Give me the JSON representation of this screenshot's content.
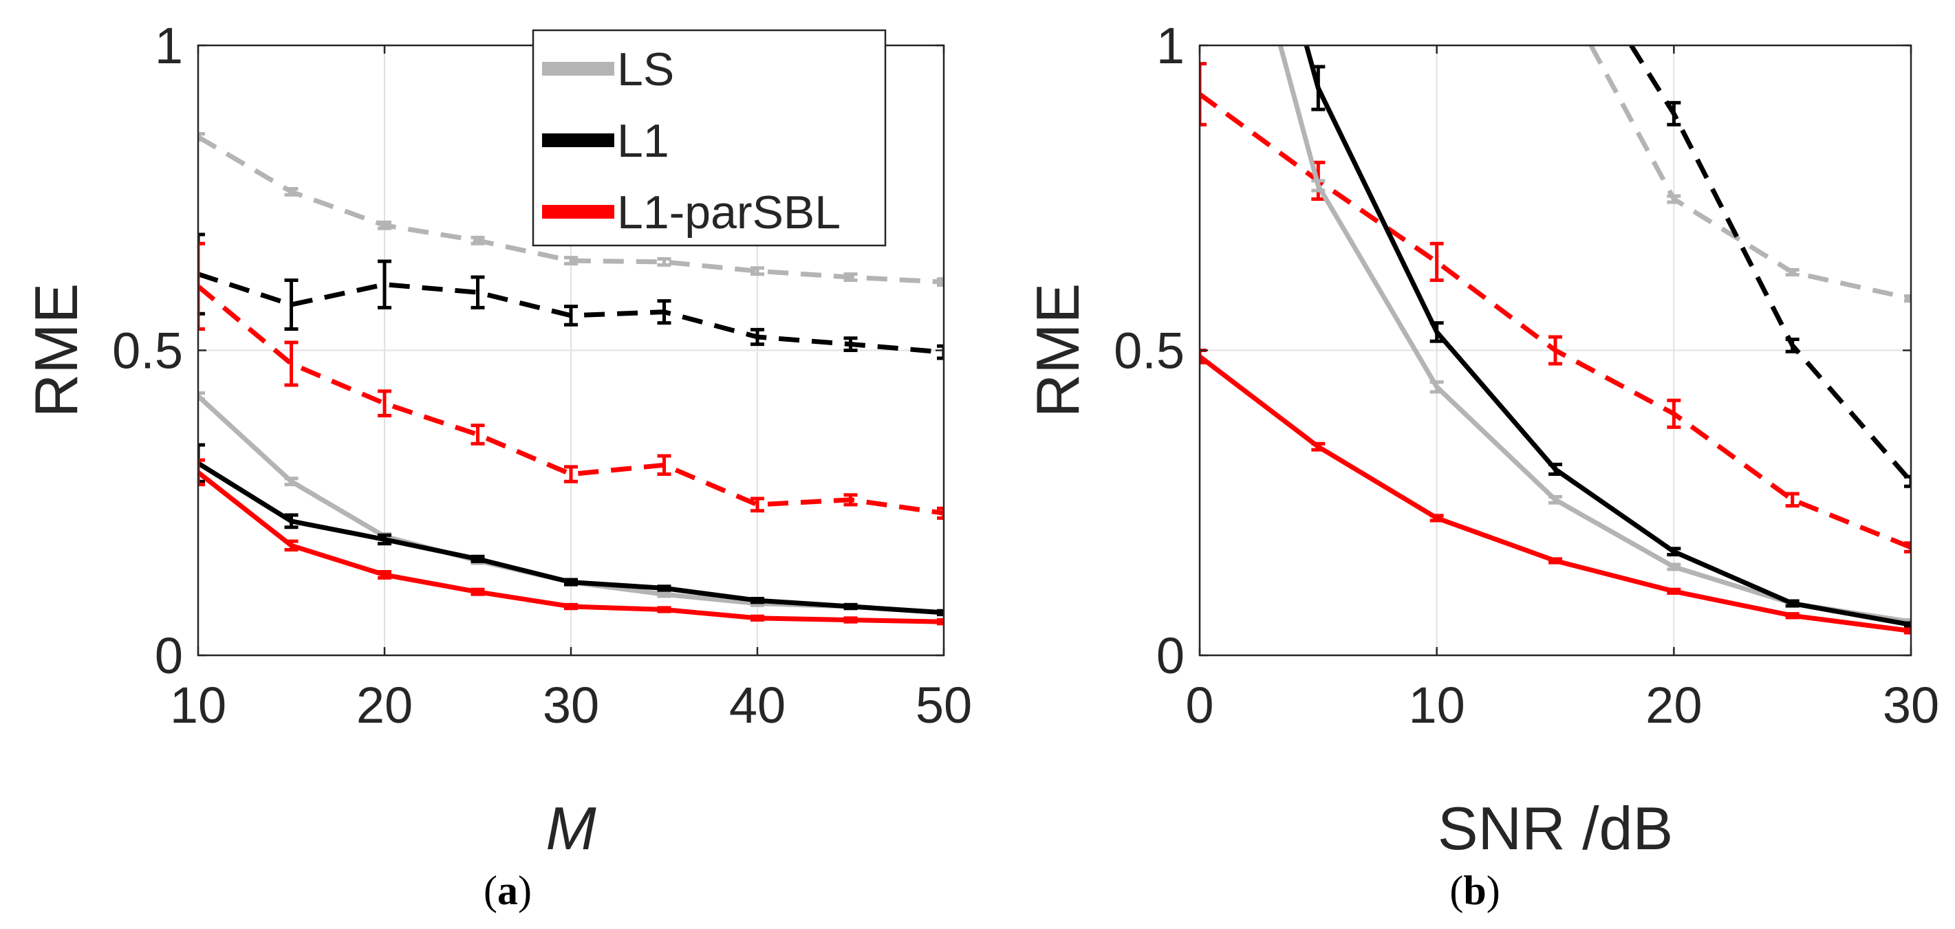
{
  "legend": {
    "items": [
      "LS",
      "L1",
      "L1-parSBL"
    ]
  },
  "colors": {
    "LS": "#b4b4b4",
    "L1": "#000000",
    "L1-parSBL": "#ff0000"
  },
  "captions": [
    {
      "open": "(",
      "letter": "a",
      "close": ")"
    },
    {
      "open": "(",
      "letter": "b",
      "close": ")"
    }
  ],
  "chart_data": [
    {
      "type": "line",
      "xlabel": "M",
      "ylabel": "RME",
      "xlim": [
        10,
        50
      ],
      "ylim": [
        0,
        1
      ],
      "xticks": [
        "10",
        "20",
        "30",
        "40",
        "50"
      ],
      "yticks": [
        "0",
        "0.5",
        "1"
      ],
      "grid": true,
      "legend_position": "top-center",
      "x": [
        10,
        15,
        20,
        25,
        30,
        35,
        40,
        45,
        50
      ],
      "series": [
        {
          "name": "LS",
          "style": "dashed",
          "values": [
            0.85,
            0.76,
            0.705,
            0.68,
            0.647,
            0.645,
            0.63,
            0.62,
            0.612
          ],
          "errors": [
            0.005,
            0.005,
            0.005,
            0.005,
            0.005,
            0.005,
            0.005,
            0.005,
            0.005
          ]
        },
        {
          "name": "L1",
          "style": "dashed",
          "values": [
            0.625,
            0.575,
            0.608,
            0.595,
            0.557,
            0.563,
            0.522,
            0.51,
            0.497
          ],
          "errors": [
            0.065,
            0.04,
            0.038,
            0.025,
            0.015,
            0.018,
            0.012,
            0.01,
            0.01
          ]
        },
        {
          "name": "L1-parSBL",
          "style": "dashed",
          "values": [
            0.605,
            0.478,
            0.413,
            0.362,
            0.297,
            0.312,
            0.247,
            0.255,
            0.233
          ],
          "errors": [
            0.07,
            0.035,
            0.02,
            0.015,
            0.012,
            0.015,
            0.01,
            0.008,
            0.008
          ]
        },
        {
          "name": "LS",
          "style": "solid",
          "values": [
            0.425,
            0.285,
            0.195,
            0.155,
            0.12,
            0.1,
            0.085,
            0.08,
            0.07
          ],
          "errors": [
            0.005,
            0.005,
            0.004,
            0.004,
            0.003,
            0.003,
            0.003,
            0.003,
            0.003
          ]
        },
        {
          "name": "L1",
          "style": "solid",
          "values": [
            0.315,
            0.22,
            0.19,
            0.158,
            0.12,
            0.11,
            0.09,
            0.08,
            0.07
          ],
          "errors": [
            0.03,
            0.01,
            0.007,
            0.004,
            0.004,
            0.003,
            0.003,
            0.003,
            0.003
          ]
        },
        {
          "name": "L1-parSBL",
          "style": "solid",
          "values": [
            0.3,
            0.18,
            0.132,
            0.104,
            0.08,
            0.075,
            0.061,
            0.058,
            0.055
          ],
          "errors": [
            0.02,
            0.007,
            0.005,
            0.004,
            0.003,
            0.003,
            0.003,
            0.003,
            0.003
          ]
        }
      ]
    },
    {
      "type": "line",
      "xlabel": "SNR /dB",
      "ylabel": "RME",
      "xlim": [
        0,
        30
      ],
      "ylim": [
        0,
        1
      ],
      "xticks": [
        "0",
        "10",
        "20",
        "30"
      ],
      "yticks": [
        "0",
        "0.5",
        "1"
      ],
      "grid": true,
      "x": [
        0,
        5,
        10,
        15,
        20,
        25,
        30
      ],
      "series": [
        {
          "name": "LS",
          "style": "dashed",
          "x": [
            16.5,
            20,
            25,
            30
          ],
          "values": [
            1.0,
            0.748,
            0.628,
            0.585
          ],
          "errors": [
            0,
            0.005,
            0.004,
            0.004
          ]
        },
        {
          "name": "L1",
          "style": "dashed",
          "x": [
            18.2,
            20,
            25,
            30
          ],
          "values": [
            1.0,
            0.888,
            0.508,
            0.285
          ],
          "errors": [
            0,
            0.018,
            0.01,
            0.008
          ]
        },
        {
          "name": "L1-parSBL",
          "style": "dashed",
          "x": [
            0,
            5,
            10,
            15,
            20,
            25,
            30
          ],
          "values": [
            0.92,
            0.778,
            0.645,
            0.5,
            0.396,
            0.255,
            0.177
          ],
          "errors": [
            0.05,
            0.03,
            0.03,
            0.022,
            0.022,
            0.01,
            0.007
          ]
        },
        {
          "name": "LS",
          "style": "solid",
          "x": [
            3.4,
            5,
            10,
            15,
            20,
            25,
            30
          ],
          "values": [
            1.0,
            0.77,
            0.44,
            0.255,
            0.145,
            0.085,
            0.055
          ],
          "errors": [
            0,
            0.008,
            0.008,
            0.005,
            0.004,
            0.003,
            0.003
          ]
        },
        {
          "name": "L1",
          "style": "solid",
          "x": [
            4.5,
            5,
            10,
            15,
            20,
            25,
            30
          ],
          "values": [
            1.0,
            0.93,
            0.53,
            0.305,
            0.17,
            0.085,
            0.05
          ],
          "errors": [
            0,
            0.035,
            0.015,
            0.008,
            0.005,
            0.004,
            0.003
          ]
        },
        {
          "name": "L1-parSBL",
          "style": "solid",
          "x": [
            0,
            5,
            10,
            15,
            20,
            25,
            30
          ],
          "values": [
            0.49,
            0.342,
            0.225,
            0.155,
            0.105,
            0.065,
            0.04
          ],
          "errors": [
            0.01,
            0.005,
            0.004,
            0.003,
            0.003,
            0.003,
            0.003
          ]
        }
      ]
    }
  ]
}
